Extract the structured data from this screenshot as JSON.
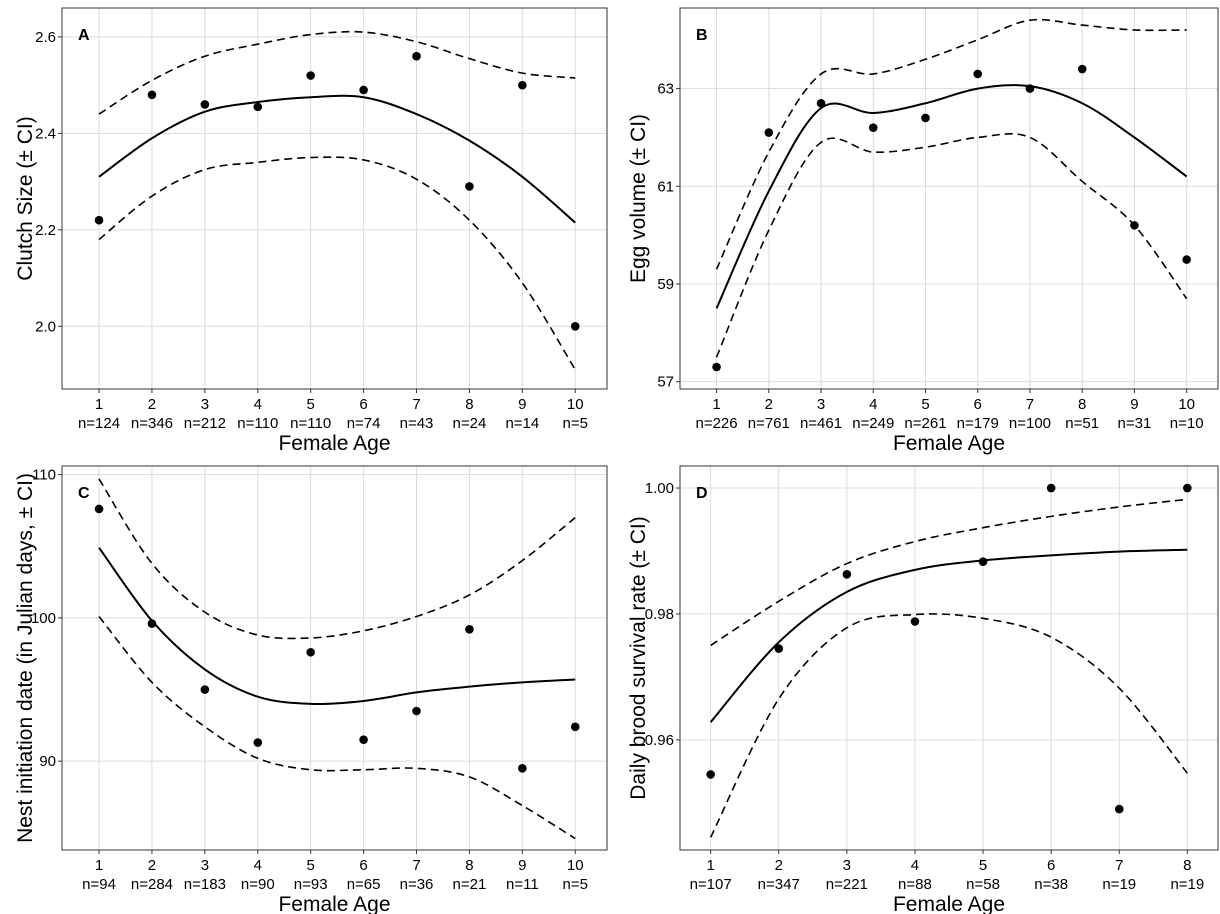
{
  "figure": {
    "colors": {
      "background": "#ffffff",
      "grid": "#dcdcdc",
      "line": "#000000",
      "frame": "#333333"
    }
  },
  "chart_data": [
    {
      "id": "A",
      "type": "scatter",
      "panel_label": "A",
      "xlabel": "Female Age",
      "ylabel": "Clutch Size (± CI)",
      "x": [
        1,
        2,
        3,
        4,
        5,
        6,
        7,
        8,
        9,
        10
      ],
      "n_labels": [
        "n=124",
        "n=346",
        "n=212",
        "n=110",
        "n=110",
        "n=74",
        "n=43",
        "n=24",
        "n=14",
        "n=5"
      ],
      "xlim": [
        0.3,
        10.6
      ],
      "ylim": [
        1.87,
        2.66
      ],
      "yticks": [
        2.0,
        2.2,
        2.4,
        2.6
      ],
      "ytick_labels": [
        "2.0",
        "2.2",
        "2.4",
        "2.6"
      ],
      "points": [
        2.22,
        2.48,
        2.46,
        2.455,
        2.52,
        2.49,
        2.56,
        2.29,
        2.5,
        2.0
      ],
      "fit": [
        2.31,
        2.39,
        2.445,
        2.465,
        2.475,
        2.475,
        2.44,
        2.385,
        2.31,
        2.215
      ],
      "ci_upper": [
        2.44,
        2.51,
        2.56,
        2.585,
        2.605,
        2.61,
        2.59,
        2.555,
        2.525,
        2.515
      ],
      "ci_lower": [
        2.18,
        2.27,
        2.325,
        2.34,
        2.35,
        2.345,
        2.305,
        2.22,
        2.09,
        1.91
      ],
      "grid": true
    },
    {
      "id": "B",
      "type": "scatter",
      "panel_label": "B",
      "xlabel": "Female Age",
      "ylabel": "Egg volume (± CI)",
      "x": [
        1,
        2,
        3,
        4,
        5,
        6,
        7,
        8,
        9,
        10
      ],
      "n_labels": [
        "n=226",
        "n=761",
        "n=461",
        "n=249",
        "n=261",
        "n=179",
        "n=100",
        "n=51",
        "n=31",
        "n=10"
      ],
      "xlim": [
        0.3,
        10.6
      ],
      "ylim": [
        56.85,
        64.65
      ],
      "yticks": [
        57,
        59,
        61,
        63
      ],
      "ytick_labels": [
        "57",
        "59",
        "61",
        "63"
      ],
      "points": [
        57.3,
        62.1,
        62.7,
        62.2,
        62.4,
        63.3,
        63.0,
        63.4,
        60.2,
        59.5
      ],
      "fit": [
        58.5,
        60.9,
        62.6,
        62.5,
        62.7,
        63.0,
        63.05,
        62.7,
        62.0,
        61.2
      ],
      "ci_upper": [
        59.3,
        61.7,
        63.3,
        63.3,
        63.6,
        64.0,
        64.4,
        64.3,
        64.2,
        64.2
      ],
      "ci_lower": [
        57.5,
        60.1,
        61.9,
        61.7,
        61.8,
        62.0,
        62.0,
        61.1,
        60.2,
        58.7
      ],
      "grid": true
    },
    {
      "id": "C",
      "type": "scatter",
      "panel_label": "C",
      "xlabel": "Female Age",
      "ylabel": "Nest initiation date (in Julian days, ± CI)",
      "x": [
        1,
        2,
        3,
        4,
        5,
        6,
        7,
        8,
        9,
        10
      ],
      "n_labels": [
        "n=94",
        "n=284",
        "n=183",
        "n=90",
        "n=93",
        "n=65",
        "n=36",
        "n=21",
        "n=11",
        "n=5"
      ],
      "xlim": [
        0.3,
        10.6
      ],
      "ylim": [
        83.8,
        110.6
      ],
      "yticks": [
        90,
        100,
        110
      ],
      "ytick_labels": [
        "90",
        "100",
        "110"
      ],
      "points": [
        107.6,
        99.6,
        95.0,
        91.3,
        97.6,
        91.5,
        93.5,
        99.2,
        89.5,
        92.4
      ],
      "fit": [
        104.9,
        99.8,
        96.4,
        94.5,
        94.0,
        94.2,
        94.8,
        95.2,
        95.5,
        95.7
      ],
      "ci_upper": [
        109.7,
        103.8,
        100.4,
        98.8,
        98.6,
        99.1,
        100.1,
        101.6,
        104.0,
        107.0
      ],
      "ci_lower": [
        100.1,
        95.5,
        92.4,
        90.2,
        89.4,
        89.4,
        89.5,
        88.9,
        86.9,
        84.6
      ],
      "grid": true
    },
    {
      "id": "D",
      "type": "scatter",
      "panel_label": "D",
      "xlabel": "Female Age",
      "ylabel": "Daily brood survival rate (± CI)",
      "x": [
        1,
        2,
        3,
        4,
        5,
        6,
        7,
        8
      ],
      "n_labels": [
        "n=107",
        "n=347",
        "n=221",
        "n=88",
        "n=58",
        "n=38",
        "n=19",
        "n=19"
      ],
      "xlim": [
        0.55,
        8.45
      ],
      "ylim": [
        0.9425,
        1.0035
      ],
      "yticks": [
        0.96,
        0.98,
        1.0
      ],
      "ytick_labels": [
        "0.96",
        "0.98",
        "1.00"
      ],
      "points": [
        0.9545,
        0.9745,
        0.9863,
        0.9788,
        0.9883,
        1.0,
        0.949,
        1.0
      ],
      "fit": [
        0.9628,
        0.9755,
        0.9835,
        0.987,
        0.9885,
        0.9893,
        0.9899,
        0.9902
      ],
      "ci_upper": [
        0.975,
        0.982,
        0.988,
        0.9915,
        0.9937,
        0.9955,
        0.997,
        0.9982
      ],
      "ci_lower": [
        0.9445,
        0.9665,
        0.9778,
        0.9799,
        0.9793,
        0.9763,
        0.9682,
        0.9547
      ],
      "grid": true
    }
  ]
}
